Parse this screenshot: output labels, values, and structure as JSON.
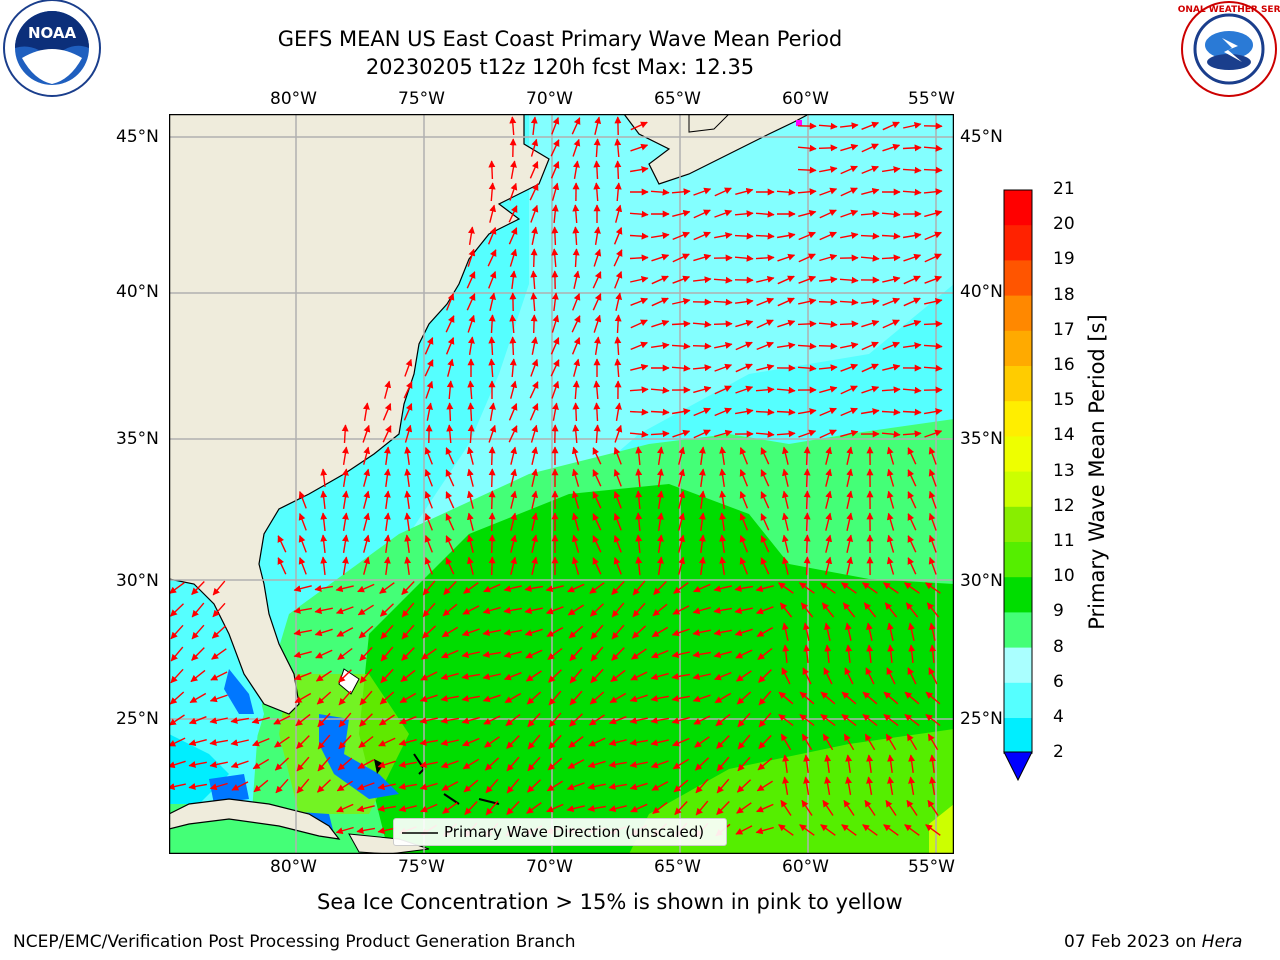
{
  "title": {
    "line1": "GEFS MEAN US East Coast Primary Wave Mean Period",
    "line2": "20230205 t12z 120h fcst   Max: 12.35"
  },
  "map": {
    "lon_labels": [
      "80°W",
      "75°W",
      "70°W",
      "65°W",
      "60°W",
      "55°W"
    ],
    "lat_labels": [
      "45°N",
      "40°N",
      "35°N",
      "30°N",
      "25°N"
    ],
    "legend_label": "Primary Wave Direction (unscaled)",
    "colors": {
      "land": "#efecdc",
      "grid": "#b0b0b0",
      "arrow": "#ff0000",
      "coast": "#000000"
    }
  },
  "colorbar": {
    "label": "Primary Wave Mean Period [s]",
    "ticks": [
      "21",
      "20",
      "19",
      "18",
      "17",
      "16",
      "15",
      "14",
      "13",
      "12",
      "11",
      "10",
      "9",
      "8",
      "6",
      "4",
      "2"
    ],
    "colors": [
      "#ff0000",
      "#ff2200",
      "#ff5500",
      "#ff8800",
      "#ffaa00",
      "#ffcc00",
      "#ffee00",
      "#eeff00",
      "#ccff00",
      "#88ee00",
      "#55ee00",
      "#00dd00",
      "#44ff77",
      "#aaffff",
      "#55ffff",
      "#00eeff",
      "#0077ff"
    ],
    "extend_color": "#0000ff"
  },
  "caption": "Sea Ice Concentration > 15% is shown in pink to yellow",
  "footer": {
    "left": "NCEP/EMC/Verification Post Processing Product Generation Branch",
    "right_date": "07 Feb 2023 on ",
    "right_machine": "Hera"
  },
  "logos": {
    "noaa_text": "NOAA",
    "nws_text": "NATIONAL WEATHER SERVICE"
  }
}
